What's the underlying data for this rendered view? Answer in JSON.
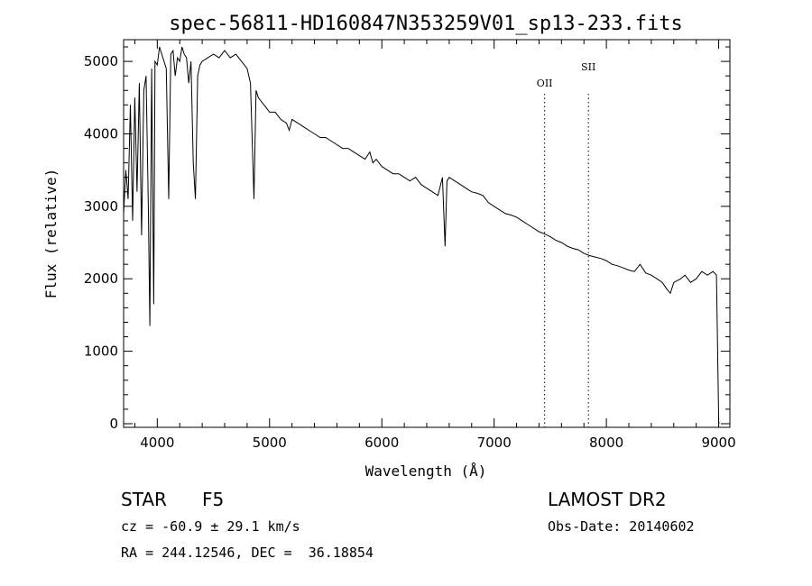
{
  "chart_data": {
    "type": "line",
    "title": "spec-56811-HD160847N353259V01_sp13-233.fits",
    "xlabel": "Wavelength (Å)",
    "ylabel": "Flux (relative)",
    "xlim": [
      3700,
      9100
    ],
    "ylim": [
      -50,
      5300
    ],
    "x_ticks": [
      4000,
      5000,
      6000,
      7000,
      8000,
      9000
    ],
    "y_ticks": [
      0,
      1000,
      2000,
      3000,
      4000,
      5000
    ],
    "grid": false,
    "series": [
      {
        "x": [
          3700,
          3720,
          3740,
          3760,
          3780,
          3800,
          3820,
          3840,
          3860,
          3880,
          3900,
          3920,
          3934,
          3950,
          3968,
          3980,
          4000,
          4020,
          4040,
          4060,
          4080,
          4102,
          4120,
          4140,
          4160,
          4180,
          4200,
          4220,
          4240,
          4260,
          4280,
          4300,
          4320,
          4340,
          4360,
          4380,
          4400,
          4450,
          4500,
          4550,
          4600,
          4650,
          4700,
          4750,
          4800,
          4830,
          4861,
          4880,
          4900,
          4950,
          5000,
          5050,
          5100,
          5150,
          5175,
          5200,
          5250,
          5300,
          5350,
          5400,
          5450,
          5500,
          5550,
          5600,
          5650,
          5700,
          5750,
          5800,
          5850,
          5893,
          5920,
          5950,
          6000,
          6050,
          6100,
          6150,
          6200,
          6250,
          6300,
          6350,
          6400,
          6450,
          6500,
          6540,
          6563,
          6580,
          6600,
          6650,
          6700,
          6750,
          6800,
          6850,
          6900,
          6950,
          7000,
          7050,
          7100,
          7150,
          7200,
          7250,
          7300,
          7350,
          7400,
          7450,
          7500,
          7550,
          7600,
          7650,
          7700,
          7750,
          7800,
          7850,
          7900,
          7950,
          8000,
          8050,
          8100,
          8150,
          8200,
          8250,
          8300,
          8350,
          8400,
          8450,
          8498,
          8520,
          8542,
          8570,
          8600,
          8662,
          8700,
          8750,
          8800,
          8850,
          8900,
          8950,
          8980,
          9000,
          9005
        ],
        "values": [
          2900,
          3500,
          3100,
          4400,
          2800,
          4500,
          3200,
          4700,
          2600,
          4600,
          4800,
          3000,
          1350,
          4900,
          1650,
          5000,
          4950,
          5200,
          5100,
          5000,
          4900,
          3100,
          5100,
          5150,
          4800,
          5050,
          5000,
          5200,
          5100,
          5050,
          4700,
          5000,
          3600,
          3100,
          4800,
          4950,
          5000,
          5050,
          5100,
          5050,
          5150,
          5050,
          5100,
          5000,
          4900,
          4700,
          3100,
          4600,
          4500,
          4400,
          4300,
          4300,
          4200,
          4150,
          4050,
          4200,
          4150,
          4100,
          4050,
          4000,
          3950,
          3950,
          3900,
          3850,
          3800,
          3800,
          3750,
          3700,
          3650,
          3750,
          3600,
          3650,
          3550,
          3500,
          3450,
          3450,
          3400,
          3350,
          3400,
          3300,
          3250,
          3200,
          3150,
          3400,
          2450,
          3350,
          3400,
          3350,
          3300,
          3250,
          3200,
          3180,
          3150,
          3050,
          3000,
          2950,
          2900,
          2880,
          2850,
          2800,
          2750,
          2700,
          2650,
          2620,
          2580,
          2530,
          2500,
          2450,
          2420,
          2400,
          2350,
          2320,
          2300,
          2280,
          2250,
          2200,
          2180,
          2150,
          2120,
          2100,
          2200,
          2080,
          2050,
          2000,
          1950,
          1900,
          1850,
          1800,
          1950,
          2000,
          2050,
          1950,
          2000,
          2100,
          2050,
          2100,
          2050,
          20,
          0
        ]
      }
    ],
    "annotations": [
      {
        "label": "OII",
        "x": 7450
      },
      {
        "label": "SII",
        "x": 7840
      }
    ]
  },
  "info": {
    "object_type": "STAR",
    "subclass": "F5",
    "survey": "LAMOST DR2",
    "cz": "cz = -60.9 ± 29.1 km/s",
    "obs_date": "Obs-Date: 20140602",
    "coords": "RA = 244.12546, DEC =  36.18854"
  }
}
